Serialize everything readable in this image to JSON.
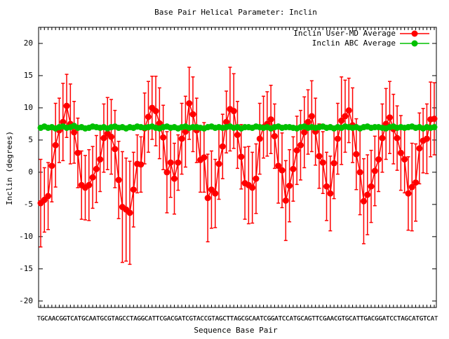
{
  "chart_data": {
    "type": "line",
    "title": "Base Pair Helical Parameter: Inclin",
    "x_label": "Sequence Base Pair",
    "y_label": "Inclin (degrees)",
    "ylim": [
      -21,
      22.5
    ],
    "yticks": [
      -20,
      -15,
      -10,
      -5,
      0,
      5,
      10,
      15,
      20
    ],
    "legend_position": "top-right",
    "categories": [
      "TG",
      "GC",
      "CA",
      "AA",
      "AC",
      "CG",
      "GG",
      "GT",
      "TC",
      "CA",
      "AT",
      "TG",
      "GC",
      "CA",
      "AA",
      "AT",
      "TG",
      "GC",
      "CG",
      "GT",
      "TA",
      "AG",
      "GC",
      "CC",
      "CT",
      "TA",
      "AG",
      "GG",
      "GC",
      "CA",
      "AT",
      "TT",
      "TC",
      "CG",
      "GA",
      "AC",
      "CG",
      "GA",
      "AT",
      "TC",
      "CG",
      "GT",
      "TA",
      "AC",
      "CC",
      "CG",
      "GT",
      "TA",
      "AG",
      "GC",
      "CT",
      "TT",
      "TA",
      "AG",
      "GC",
      "CG",
      "GC",
      "CA",
      "AA",
      "AT",
      "TC",
      "CG",
      "GG",
      "GA",
      "AT",
      "TC",
      "CC",
      "CA",
      "AT",
      "TG",
      "GC",
      "CA",
      "AG",
      "GT",
      "TT",
      "TC",
      "CG",
      "GA",
      "AA",
      "AC",
      "CG",
      "GT",
      "TG",
      "GC",
      "CA",
      "AT",
      "TT",
      "TG",
      "GA",
      "AC",
      "CG",
      "GG",
      "GA",
      "AT",
      "TC",
      "CC",
      "CT",
      "TA",
      "AG",
      "GC",
      "CA",
      "AT",
      "TG",
      "GT",
      "TC",
      "CA",
      "AT"
    ],
    "series": [
      {
        "name": "Inclin User-MD Average",
        "color": "#ff0000",
        "values": [
          -4.8,
          -4.3,
          -3.7,
          1.0,
          4.2,
          6.5,
          7.8,
          10.3,
          7.5,
          6.2,
          3.0,
          -2.0,
          -2.4,
          -2.0,
          -0.8,
          0.5,
          2.0,
          5.3,
          6.0,
          5.5,
          3.6,
          -1.2,
          -5.4,
          -5.8,
          -6.3,
          -2.7,
          1.3,
          1.2,
          6.8,
          8.6,
          10.0,
          9.5,
          7.6,
          5.4,
          0.0,
          1.5,
          -1.0,
          1.5,
          5.2,
          6.3,
          10.7,
          9.0,
          6.5,
          1.9,
          2.3,
          -4.0,
          -2.7,
          -3.3,
          1.3,
          4.0,
          7.8,
          9.8,
          9.5,
          5.8,
          2.4,
          -1.7,
          -2.0,
          -2.4,
          -1.0,
          5.2,
          7.0,
          7.5,
          8.2,
          5.6,
          1.0,
          0.3,
          -4.4,
          -2.1,
          0.5,
          3.4,
          4.2,
          6.2,
          7.8,
          8.7,
          6.3,
          2.5,
          1.5,
          -2.2,
          -3.3,
          1.4,
          5.2,
          8.0,
          8.7,
          9.6,
          7.3,
          2.8,
          0.0,
          -4.5,
          -3.5,
          -2.2,
          0.2,
          2.0,
          5.3,
          7.5,
          8.5,
          6.7,
          5.3,
          3.0,
          2.0,
          -3.3,
          -2.3,
          -1.6,
          3.7,
          4.9,
          5.2,
          8.2,
          8.3
        ],
        "errors": [
          6.8,
          5.0,
          5.2,
          5.6,
          6.5,
          5.0,
          6.0,
          4.9,
          6.2,
          4.8,
          5.4,
          5.3,
          5.0,
          5.5,
          4.8,
          5.2,
          5.0,
          5.3,
          5.6,
          5.8,
          6.0,
          6.0,
          8.6,
          8.0,
          8.0,
          5.8,
          4.5,
          4.3,
          5.5,
          5.5,
          4.9,
          5.4,
          5.5,
          5.0,
          6.3,
          5.4,
          5.5,
          4.3,
          5.5,
          5.5,
          5.6,
          5.8,
          5.0,
          5.0,
          5.4,
          6.8,
          6.0,
          5.3,
          5.5,
          5.0,
          4.8,
          6.5,
          5.8,
          5.2,
          5.0,
          5.6,
          6.0,
          5.5,
          5.4,
          5.5,
          4.8,
          5.0,
          5.3,
          5.0,
          5.8,
          5.8,
          6.2,
          5.6,
          5.0,
          5.3,
          5.4,
          5.5,
          5.0,
          5.5,
          5.2,
          5.0,
          4.8,
          5.3,
          5.8,
          5.5,
          5.5,
          6.8,
          5.6,
          5.0,
          5.8,
          5.5,
          6.6,
          6.6,
          6.2,
          5.6,
          5.4,
          5.0,
          5.3,
          5.5,
          5.6,
          5.4,
          5.0,
          5.8,
          5.2,
          5.7,
          6.8,
          6.0,
          5.5,
          5.0,
          5.4,
          5.8,
          5.6
        ]
      },
      {
        "name": "Inclin ABC Average",
        "color": "#00c000",
        "values": [
          6.9,
          7.1,
          6.9,
          7.0,
          6.8,
          7.0,
          7.1,
          6.9,
          7.0,
          7.2,
          6.9,
          7.0,
          6.8,
          6.9,
          7.1,
          7.0,
          6.9,
          7.0,
          6.8,
          7.0,
          7.1,
          6.9,
          7.0,
          6.8,
          7.0,
          6.9,
          7.1,
          7.0,
          6.9,
          7.0,
          7.1,
          6.9,
          6.8,
          7.0,
          7.1,
          6.9,
          7.0,
          6.8,
          7.0,
          7.1,
          6.9,
          7.0,
          7.0,
          6.9,
          6.8,
          7.0,
          7.1,
          6.9,
          7.0,
          6.9,
          7.0,
          7.1,
          6.9,
          7.0,
          6.8,
          7.0,
          7.0,
          6.9,
          7.1,
          7.0,
          6.9,
          7.0,
          6.8,
          7.0,
          7.1,
          6.9,
          7.0,
          7.0,
          6.9,
          6.8,
          7.0,
          7.1,
          6.9,
          7.0,
          6.9,
          7.0,
          7.1,
          6.9,
          7.0,
          6.8,
          7.0,
          6.9,
          7.1,
          7.0,
          6.9,
          7.0,
          6.8,
          7.0,
          7.1,
          6.9,
          7.0,
          7.0,
          6.9,
          6.8,
          7.0,
          7.1,
          6.9,
          7.0,
          6.9,
          7.0,
          7.1,
          6.9,
          7.0,
          6.8,
          7.0,
          6.9,
          7.0
        ]
      }
    ]
  }
}
